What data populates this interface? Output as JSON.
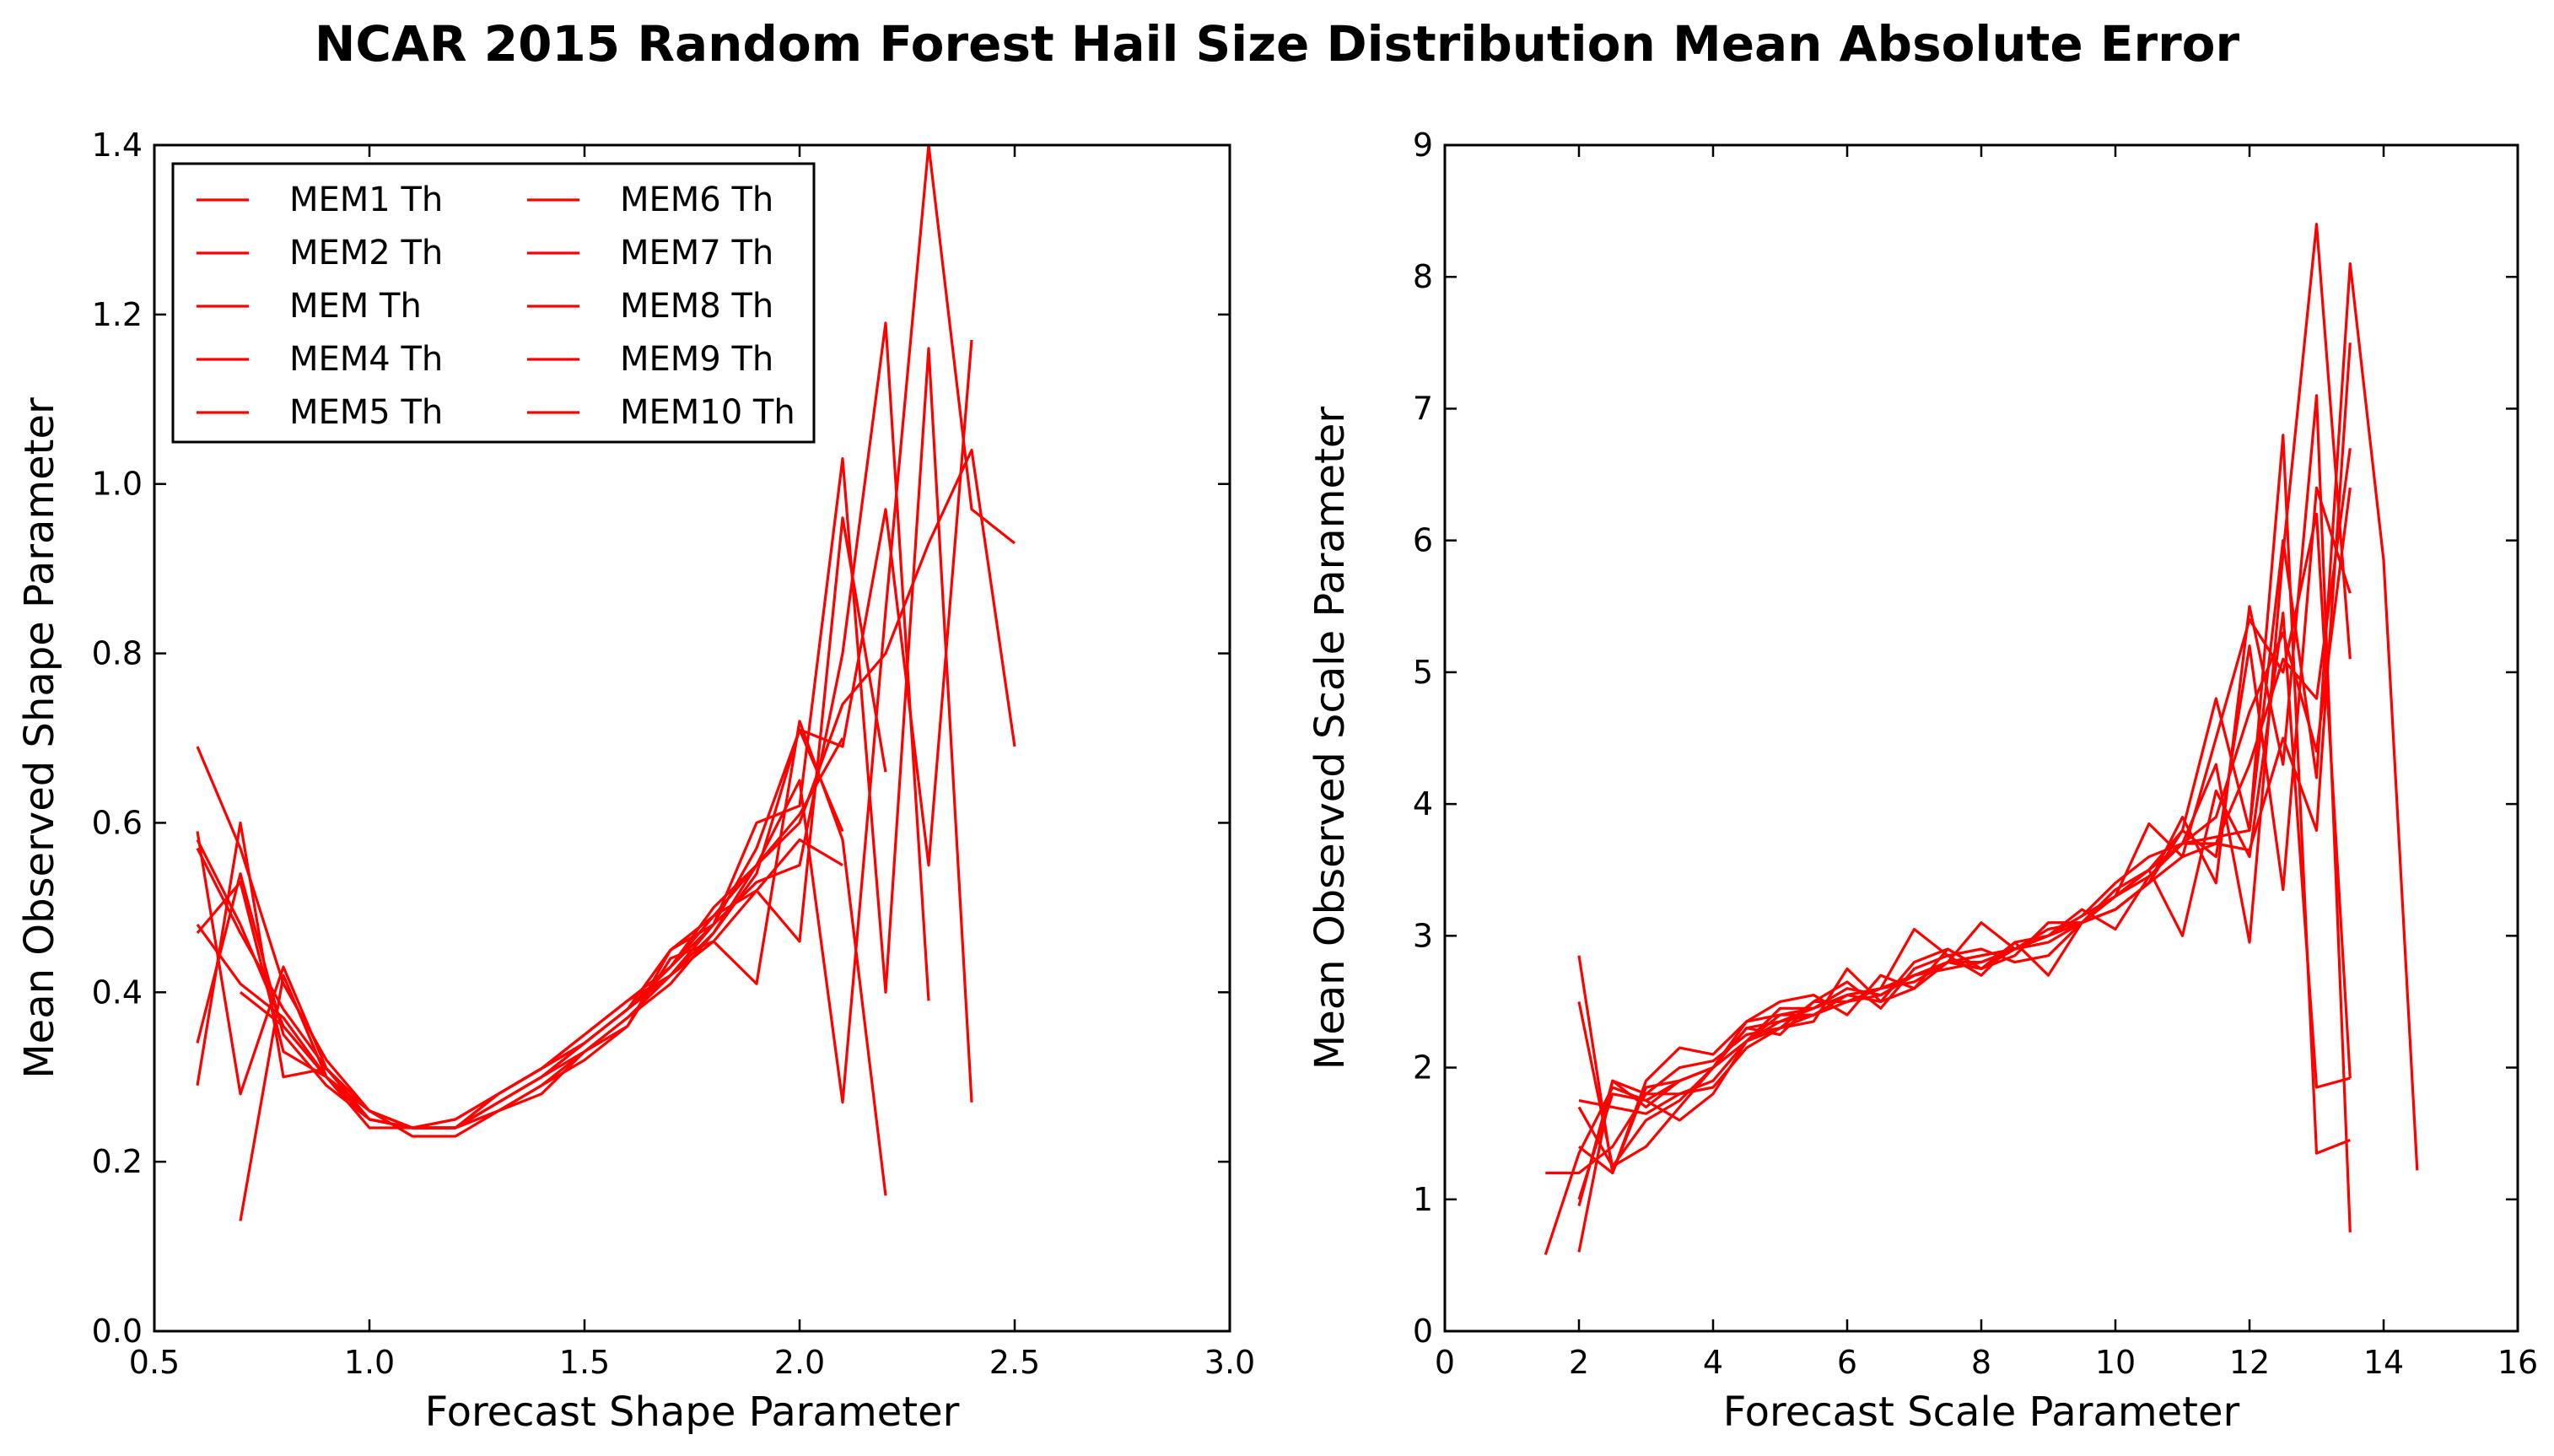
{
  "figure": {
    "title": "NCAR 2015 Random Forest Hail Size Distribution Mean Absolute Error",
    "line_color": "#ff0000"
  },
  "chart_data": [
    {
      "type": "line",
      "xlabel": "Forecast Shape Parameter",
      "ylabel": "Mean Observed Shape Parameter",
      "xlim": [
        0.5,
        3.0
      ],
      "ylim": [
        0.0,
        1.4
      ],
      "xticks": [
        "0.5",
        "1.0",
        "1.5",
        "2.0",
        "2.5",
        "3.0"
      ],
      "yticks": [
        "0.0",
        "0.2",
        "0.4",
        "0.6",
        "0.8",
        "1.0",
        "1.2",
        "1.4"
      ],
      "grid": false,
      "legend": {
        "location": "upper-left",
        "columns": 2
      },
      "series": [
        {
          "name": "MEM1 Th",
          "x": [
            0.6,
            0.7,
            0.8,
            0.9,
            1.0,
            1.1,
            1.2,
            1.3,
            1.4,
            1.5,
            1.6,
            1.7,
            1.8,
            1.9,
            2.0,
            2.1,
            2.2,
            2.3,
            2.4
          ],
          "y": [
            0.69,
            0.57,
            0.41,
            0.32,
            0.26,
            0.24,
            0.24,
            0.27,
            0.3,
            0.33,
            0.37,
            0.42,
            0.47,
            0.54,
            0.71,
            0.69,
            0.97,
            0.55,
            1.17
          ]
        },
        {
          "name": "MEM2 Th",
          "x": [
            0.6,
            0.7,
            0.8,
            0.9,
            1.0,
            1.1,
            1.2,
            1.3,
            1.4,
            1.5,
            1.6,
            1.7,
            1.8,
            1.9,
            2.0,
            2.1,
            2.2,
            2.3,
            2.4,
            2.5
          ],
          "y": [
            0.59,
            0.28,
            0.43,
            0.31,
            0.25,
            0.24,
            0.24,
            0.26,
            0.29,
            0.33,
            0.37,
            0.41,
            0.47,
            0.55,
            0.65,
            0.27,
            0.85,
            1.4,
            0.97,
            0.93
          ]
        },
        {
          "name": "MEM Th",
          "x": [
            0.6,
            0.7,
            0.8,
            0.9,
            1.0,
            1.1,
            1.2,
            1.3,
            1.4,
            1.5,
            1.6,
            1.7,
            1.8,
            1.9,
            2.0,
            2.1,
            2.2,
            2.3,
            2.4
          ],
          "y": [
            0.48,
            0.41,
            0.37,
            0.3,
            0.25,
            0.24,
            0.24,
            0.28,
            0.31,
            0.34,
            0.38,
            0.45,
            0.48,
            0.6,
            0.62,
            1.03,
            0.4,
            1.16,
            0.27
          ]
        },
        {
          "name": "MEM4 Th",
          "x": [
            0.6,
            0.7,
            0.8,
            0.9,
            1.0,
            1.1,
            1.2,
            1.3,
            1.4,
            1.5,
            1.6,
            1.7,
            1.8,
            1.9,
            2.0,
            2.1,
            2.2,
            2.3
          ],
          "y": [
            0.58,
            0.48,
            0.36,
            0.3,
            0.26,
            0.24,
            0.24,
            0.27,
            0.3,
            0.34,
            0.38,
            0.43,
            0.48,
            0.53,
            0.55,
            0.8,
            1.19,
            0.39
          ]
        },
        {
          "name": "MEM5 Th",
          "x": [
            0.6,
            0.7,
            0.8,
            0.9,
            1.0,
            1.1,
            1.2,
            1.3,
            1.4,
            1.5,
            1.6,
            1.7,
            1.8,
            1.9,
            2.0,
            2.1,
            2.2
          ],
          "y": [
            0.34,
            0.54,
            0.35,
            0.29,
            0.25,
            0.24,
            0.24,
            0.26,
            0.28,
            0.33,
            0.36,
            0.44,
            0.46,
            0.41,
            0.72,
            0.58,
            0.16
          ]
        },
        {
          "name": "MEM6 Th",
          "x": [
            0.7,
            0.8,
            0.9,
            1.0,
            1.1,
            1.2,
            1.3,
            1.4,
            1.5,
            1.6,
            1.7,
            1.8,
            1.9,
            2.0,
            2.1,
            2.2,
            2.3,
            2.4,
            2.5
          ],
          "y": [
            0.13,
            0.42,
            0.3,
            0.24,
            0.24,
            0.24,
            0.28,
            0.31,
            0.34,
            0.38,
            0.43,
            0.5,
            0.55,
            0.6,
            0.74,
            0.8,
            0.93,
            1.04,
            0.69
          ]
        },
        {
          "name": "MEM7 Th",
          "x": [
            0.6,
            0.7,
            0.8,
            0.9,
            1.0,
            1.1,
            1.2,
            1.3,
            1.4,
            1.5,
            1.6,
            1.7,
            1.8,
            1.9,
            2.0,
            2.1
          ],
          "y": [
            0.29,
            0.6,
            0.3,
            0.31,
            0.26,
            0.23,
            0.23,
            0.26,
            0.29,
            0.32,
            0.36,
            0.45,
            0.49,
            0.52,
            0.58,
            0.55
          ]
        },
        {
          "name": "MEM8 Th",
          "x": [
            0.7,
            0.8,
            0.9,
            1.0,
            1.1,
            1.2,
            1.3,
            1.4,
            1.5,
            1.6,
            1.7,
            1.8,
            1.9,
            2.0,
            2.1,
            2.2
          ],
          "y": [
            0.4,
            0.36,
            0.3,
            0.25,
            0.24,
            0.25,
            0.28,
            0.31,
            0.35,
            0.39,
            0.42,
            0.46,
            0.52,
            0.46,
            0.96,
            0.66
          ]
        },
        {
          "name": "MEM9 Th",
          "x": [
            0.6,
            0.7,
            0.8,
            0.9,
            1.0,
            1.1,
            1.2,
            1.3,
            1.4,
            1.5,
            1.6,
            1.7,
            1.8,
            1.9,
            2.0,
            2.1
          ],
          "y": [
            0.47,
            0.53,
            0.33,
            0.3,
            0.25,
            0.24,
            0.24,
            0.27,
            0.3,
            0.34,
            0.38,
            0.42,
            0.48,
            0.57,
            0.71,
            0.59
          ]
        },
        {
          "name": "MEM10 Th",
          "x": [
            0.6,
            0.7,
            0.8,
            0.9,
            1.0,
            1.1,
            1.2,
            1.3,
            1.4,
            1.5,
            1.6,
            1.7,
            1.8,
            1.9,
            2.0,
            2.1
          ],
          "y": [
            0.57,
            0.47,
            0.38,
            0.31,
            0.26,
            0.24,
            0.25,
            0.28,
            0.31,
            0.35,
            0.39,
            0.43,
            0.49,
            0.55,
            0.61,
            0.7
          ]
        }
      ]
    },
    {
      "type": "line",
      "xlabel": "Forecast Scale Parameter",
      "ylabel": "Mean Observed Scale Parameter",
      "xlim": [
        0,
        16
      ],
      "ylim": [
        0,
        9
      ],
      "xticks": [
        "0",
        "2",
        "4",
        "6",
        "8",
        "10",
        "12",
        "14",
        "16"
      ],
      "yticks": [
        "0",
        "1",
        "2",
        "3",
        "4",
        "5",
        "6",
        "7",
        "8",
        "9"
      ],
      "grid": false,
      "series": [
        {
          "name": "MEM1 Th",
          "x": [
            2,
            2.5,
            3,
            3.5,
            4,
            4.5,
            5,
            5.5,
            6,
            6.5,
            7,
            7.5,
            8,
            8.5,
            9,
            9.5,
            10,
            10.5,
            11,
            11.5,
            12,
            12.5,
            13,
            13.5
          ],
          "y": [
            2.85,
            1.2,
            1.9,
            2.15,
            2.1,
            2.35,
            2.4,
            2.45,
            2.55,
            2.6,
            2.7,
            2.8,
            2.85,
            2.9,
            3.0,
            3.1,
            3.3,
            3.5,
            3.8,
            4.8,
            3.8,
            6.8,
            1.35,
            1.45
          ]
        },
        {
          "name": "MEM2 Th",
          "x": [
            2,
            2.5,
            3,
            3.5,
            4,
            4.5,
            5,
            5.5,
            6,
            6.5,
            7,
            7.5,
            8,
            8.5,
            9,
            9.5,
            10,
            10.5,
            11,
            11.5,
            12,
            12.5,
            13,
            13.5
          ],
          "y": [
            0.6,
            1.9,
            1.7,
            1.9,
            2.0,
            2.3,
            2.25,
            2.5,
            2.5,
            2.6,
            3.05,
            2.85,
            2.7,
            2.95,
            2.7,
            3.1,
            3.3,
            3.45,
            3.7,
            4.3,
            2.95,
            5.9,
            8.4,
            5.1
          ]
        },
        {
          "name": "MEM Th",
          "x": [
            1.5,
            2,
            2.5,
            3,
            3.5,
            4,
            4.5,
            5,
            5.5,
            6,
            6.5,
            7,
            7.5,
            8,
            8.5,
            9,
            9.5,
            10,
            10.5,
            11,
            11.5,
            12,
            12.5,
            13,
            13.5
          ],
          "y": [
            0.58,
            1.35,
            1.85,
            1.75,
            1.9,
            2.0,
            2.3,
            2.35,
            2.45,
            2.55,
            2.5,
            2.8,
            2.9,
            2.75,
            2.9,
            3.0,
            3.1,
            3.2,
            3.4,
            3.6,
            3.7,
            3.65,
            4.5,
            3.8,
            7.5
          ]
        },
        {
          "name": "MEM4 Th",
          "x": [
            2,
            2.5,
            3,
            3.5,
            4,
            4.5,
            5,
            5.5,
            6,
            6.5,
            7,
            7.5,
            8,
            8.5,
            9,
            9.5,
            10,
            10.5,
            11,
            11.5,
            12,
            12.5,
            13,
            13.5
          ],
          "y": [
            1.0,
            1.8,
            1.75,
            1.6,
            1.8,
            2.2,
            2.3,
            2.35,
            2.75,
            2.5,
            2.6,
            2.8,
            3.1,
            2.9,
            3.05,
            3.1,
            3.3,
            3.85,
            3.6,
            4.5,
            5.4,
            5.0,
            6.2,
            1.92
          ]
        },
        {
          "name": "MEM5 Th",
          "x": [
            2,
            2.5,
            3,
            3.5,
            4,
            4.5,
            5,
            5.5,
            6,
            6.5,
            7,
            7.5,
            8,
            8.5,
            9,
            9.5,
            10,
            10.5,
            11,
            11.5,
            12,
            12.5,
            13,
            13.5
          ],
          "y": [
            1.75,
            1.7,
            1.65,
            1.8,
            1.9,
            2.2,
            2.4,
            2.4,
            2.5,
            2.55,
            2.7,
            2.75,
            2.8,
            2.9,
            2.95,
            3.1,
            3.2,
            3.4,
            3.9,
            3.4,
            5.5,
            4.3,
            7.1,
            0.75
          ]
        },
        {
          "name": "MEM6 Th",
          "x": [
            1.5,
            2,
            2.5,
            3,
            3.5,
            4,
            4.5,
            5,
            5.5,
            6,
            6.5,
            7,
            7.5,
            8,
            8.5,
            9,
            9.5,
            10,
            10.5,
            11,
            11.5,
            12,
            12.5,
            13,
            13.5
          ],
          "y": [
            1.2,
            1.2,
            1.4,
            1.8,
            1.8,
            1.85,
            2.15,
            2.3,
            2.4,
            2.5,
            2.6,
            2.65,
            2.8,
            2.85,
            2.9,
            3.0,
            3.15,
            3.3,
            3.5,
            3.7,
            3.7,
            4.3,
            5.1,
            4.8,
            6.7
          ]
        },
        {
          "name": "MEM7 Th",
          "x": [
            2,
            2.5,
            3,
            3.5,
            4,
            4.5,
            5,
            5.5,
            6,
            6.5,
            7,
            7.5,
            8,
            8.5,
            9,
            9.5,
            10,
            10.5,
            11,
            11.5,
            12,
            12.5,
            13,
            13.5
          ],
          "y": [
            2.5,
            1.25,
            1.4,
            1.7,
            2.0,
            2.35,
            2.5,
            2.55,
            2.4,
            2.7,
            2.6,
            2.9,
            2.75,
            2.95,
            3.0,
            3.2,
            3.05,
            3.45,
            3.7,
            3.9,
            4.7,
            5.3,
            4.4,
            6.4
          ]
        },
        {
          "name": "MEM8 Th",
          "x": [
            2,
            2.5,
            3,
            3.5,
            4,
            4.5,
            5,
            5.5,
            6,
            6.5,
            7,
            7.5,
            8,
            8.5,
            9,
            9.5,
            10,
            10.5,
            11,
            11.5,
            12,
            12.5,
            13,
            13.5
          ],
          "y": [
            0.95,
            1.9,
            1.8,
            2.0,
            2.05,
            2.25,
            2.3,
            2.5,
            2.65,
            2.45,
            2.75,
            2.85,
            2.9,
            2.8,
            2.85,
            3.1,
            3.35,
            3.5,
            3.0,
            4.1,
            3.6,
            5.45,
            1.85,
            1.92
          ]
        },
        {
          "name": "MEM9 Th",
          "x": [
            2,
            2.5,
            3,
            3.5,
            4,
            4.5,
            5,
            5.5,
            6,
            6.5,
            7,
            7.5,
            8,
            8.5,
            9,
            9.5,
            10,
            10.5,
            11,
            11.5,
            12,
            12.5,
            13,
            13.5
          ],
          "y": [
            1.4,
            1.2,
            1.85,
            1.9,
            2.0,
            2.2,
            2.45,
            2.45,
            2.6,
            2.55,
            2.7,
            2.8,
            2.75,
            2.85,
            3.1,
            3.1,
            3.2,
            3.4,
            3.8,
            3.6,
            5.2,
            3.35,
            6.4,
            5.6
          ]
        },
        {
          "name": "MEM10 Th",
          "x": [
            2,
            2.5,
            3,
            3.5,
            4,
            4.5,
            5,
            5.5,
            6,
            6.5,
            7,
            7.5,
            8,
            8.5,
            9,
            9.5,
            10,
            10.5,
            11,
            11.5,
            12,
            12.5,
            13,
            13.5,
            14,
            14.5
          ],
          "y": [
            1.7,
            1.25,
            1.6,
            1.75,
            2.0,
            2.2,
            2.35,
            2.4,
            2.55,
            2.6,
            2.7,
            2.8,
            2.8,
            2.9,
            3.0,
            3.15,
            3.4,
            3.6,
            3.7,
            3.75,
            3.8,
            6.0,
            4.2,
            8.1,
            5.85,
            1.22
          ]
        }
      ]
    }
  ]
}
